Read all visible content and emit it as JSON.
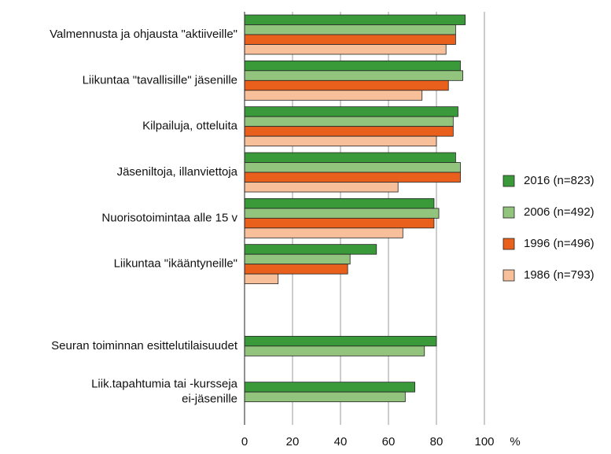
{
  "chart_data": {
    "type": "hbar",
    "xlabel": "%",
    "categories": [
      "Valmennusta ja ohjausta \"aktiiveille\"",
      "Liikuntaa \"tavallisille\" jäsenille",
      "Kilpailuja, otteluita",
      "Jäseniltoja, illanviettoja",
      "Nuorisotoimintaa alle 15 v",
      "Liikuntaa \"ikääntyneille\"",
      null,
      "Seuran toiminnan esittelutilaisuudet",
      "Liik.tapahtumia tai -kursseja\nei-jäsenille"
    ],
    "series": [
      {
        "name": "2016 (n=823)",
        "color": "#3a9a3a",
        "values": [
          92,
          90,
          89,
          88,
          79,
          55,
          null,
          80,
          71
        ]
      },
      {
        "name": "2006 (n=492)",
        "color": "#93c47d",
        "values": [
          88,
          91,
          87,
          90,
          81,
          44,
          null,
          75,
          67
        ]
      },
      {
        "name": "1996 (n=496)",
        "color": "#e8601c",
        "values": [
          88,
          85,
          87,
          90,
          79,
          43,
          null,
          null,
          null
        ]
      },
      {
        "name": "1986 (n=793)",
        "color": "#f8c09a",
        "values": [
          84,
          74,
          80,
          64,
          66,
          14,
          null,
          null,
          null
        ]
      }
    ],
    "xlim": [
      0,
      100
    ],
    "xticks": [
      0,
      20,
      40,
      60,
      80,
      100
    ],
    "grid": true,
    "legend": "right"
  }
}
